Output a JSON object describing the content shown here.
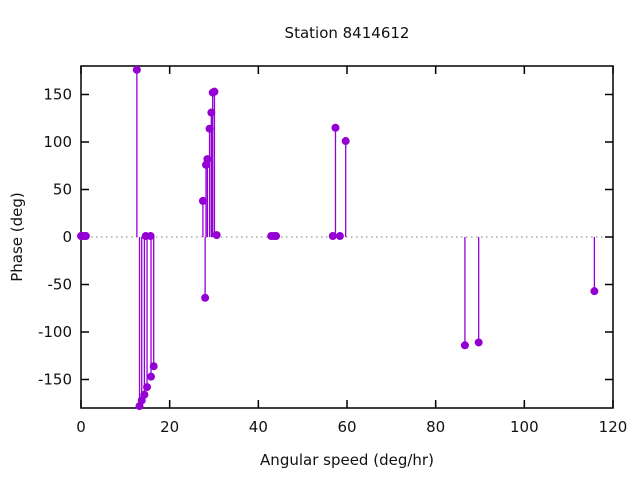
{
  "title": "Station 8414612",
  "chart_data": {
    "type": "scatter",
    "subtype": "stem-impulses",
    "title": "Station 8414612",
    "xlabel": "Angular speed (deg/hr)",
    "ylabel": "Phase (deg)",
    "xlim": [
      0,
      120
    ],
    "ylim": [
      -180,
      180
    ],
    "xticks": [
      0,
      20,
      40,
      60,
      80,
      100,
      120
    ],
    "yticks": [
      -150,
      -100,
      -50,
      0,
      50,
      100,
      150
    ],
    "legend": "none",
    "grid": "dotted zero line only",
    "marker_color": "#9400d3",
    "axis_color": "#000000",
    "zero_line_color": "#808080",
    "stems": [
      {
        "x": 12.6,
        "y": 176
      },
      {
        "x": 13.2,
        "y": -178
      },
      {
        "x": 13.7,
        "y": -172
      },
      {
        "x": 14.3,
        "y": -166
      },
      {
        "x": 14.9,
        "y": -158
      },
      {
        "x": 15.8,
        "y": -147
      },
      {
        "x": 16.4,
        "y": -136
      },
      {
        "x": 27.5,
        "y": 38
      },
      {
        "x": 28.0,
        "y": -64
      },
      {
        "x": 28.2,
        "y": 76
      },
      {
        "x": 28.5,
        "y": 82
      },
      {
        "x": 29.0,
        "y": 114
      },
      {
        "x": 29.4,
        "y": 131
      },
      {
        "x": 29.7,
        "y": 152
      },
      {
        "x": 30.1,
        "y": 153
      },
      {
        "x": 57.4,
        "y": 115
      },
      {
        "x": 59.7,
        "y": 101
      },
      {
        "x": 86.6,
        "y": -114
      },
      {
        "x": 89.7,
        "y": -111
      },
      {
        "x": 115.8,
        "y": -57
      }
    ],
    "zero_points": [
      {
        "x": 0.0,
        "y": 1
      },
      {
        "x": 0.1,
        "y": 1
      },
      {
        "x": 0.5,
        "y": 1
      },
      {
        "x": 1.0,
        "y": 1
      },
      {
        "x": 1.1,
        "y": 1
      },
      {
        "x": 14.6,
        "y": 1
      },
      {
        "x": 15.7,
        "y": 1
      },
      {
        "x": 30.6,
        "y": 2
      },
      {
        "x": 42.9,
        "y": 1
      },
      {
        "x": 43.5,
        "y": 1
      },
      {
        "x": 44.0,
        "y": 1
      },
      {
        "x": 56.8,
        "y": 1
      },
      {
        "x": 58.4,
        "y": 1
      }
    ]
  }
}
